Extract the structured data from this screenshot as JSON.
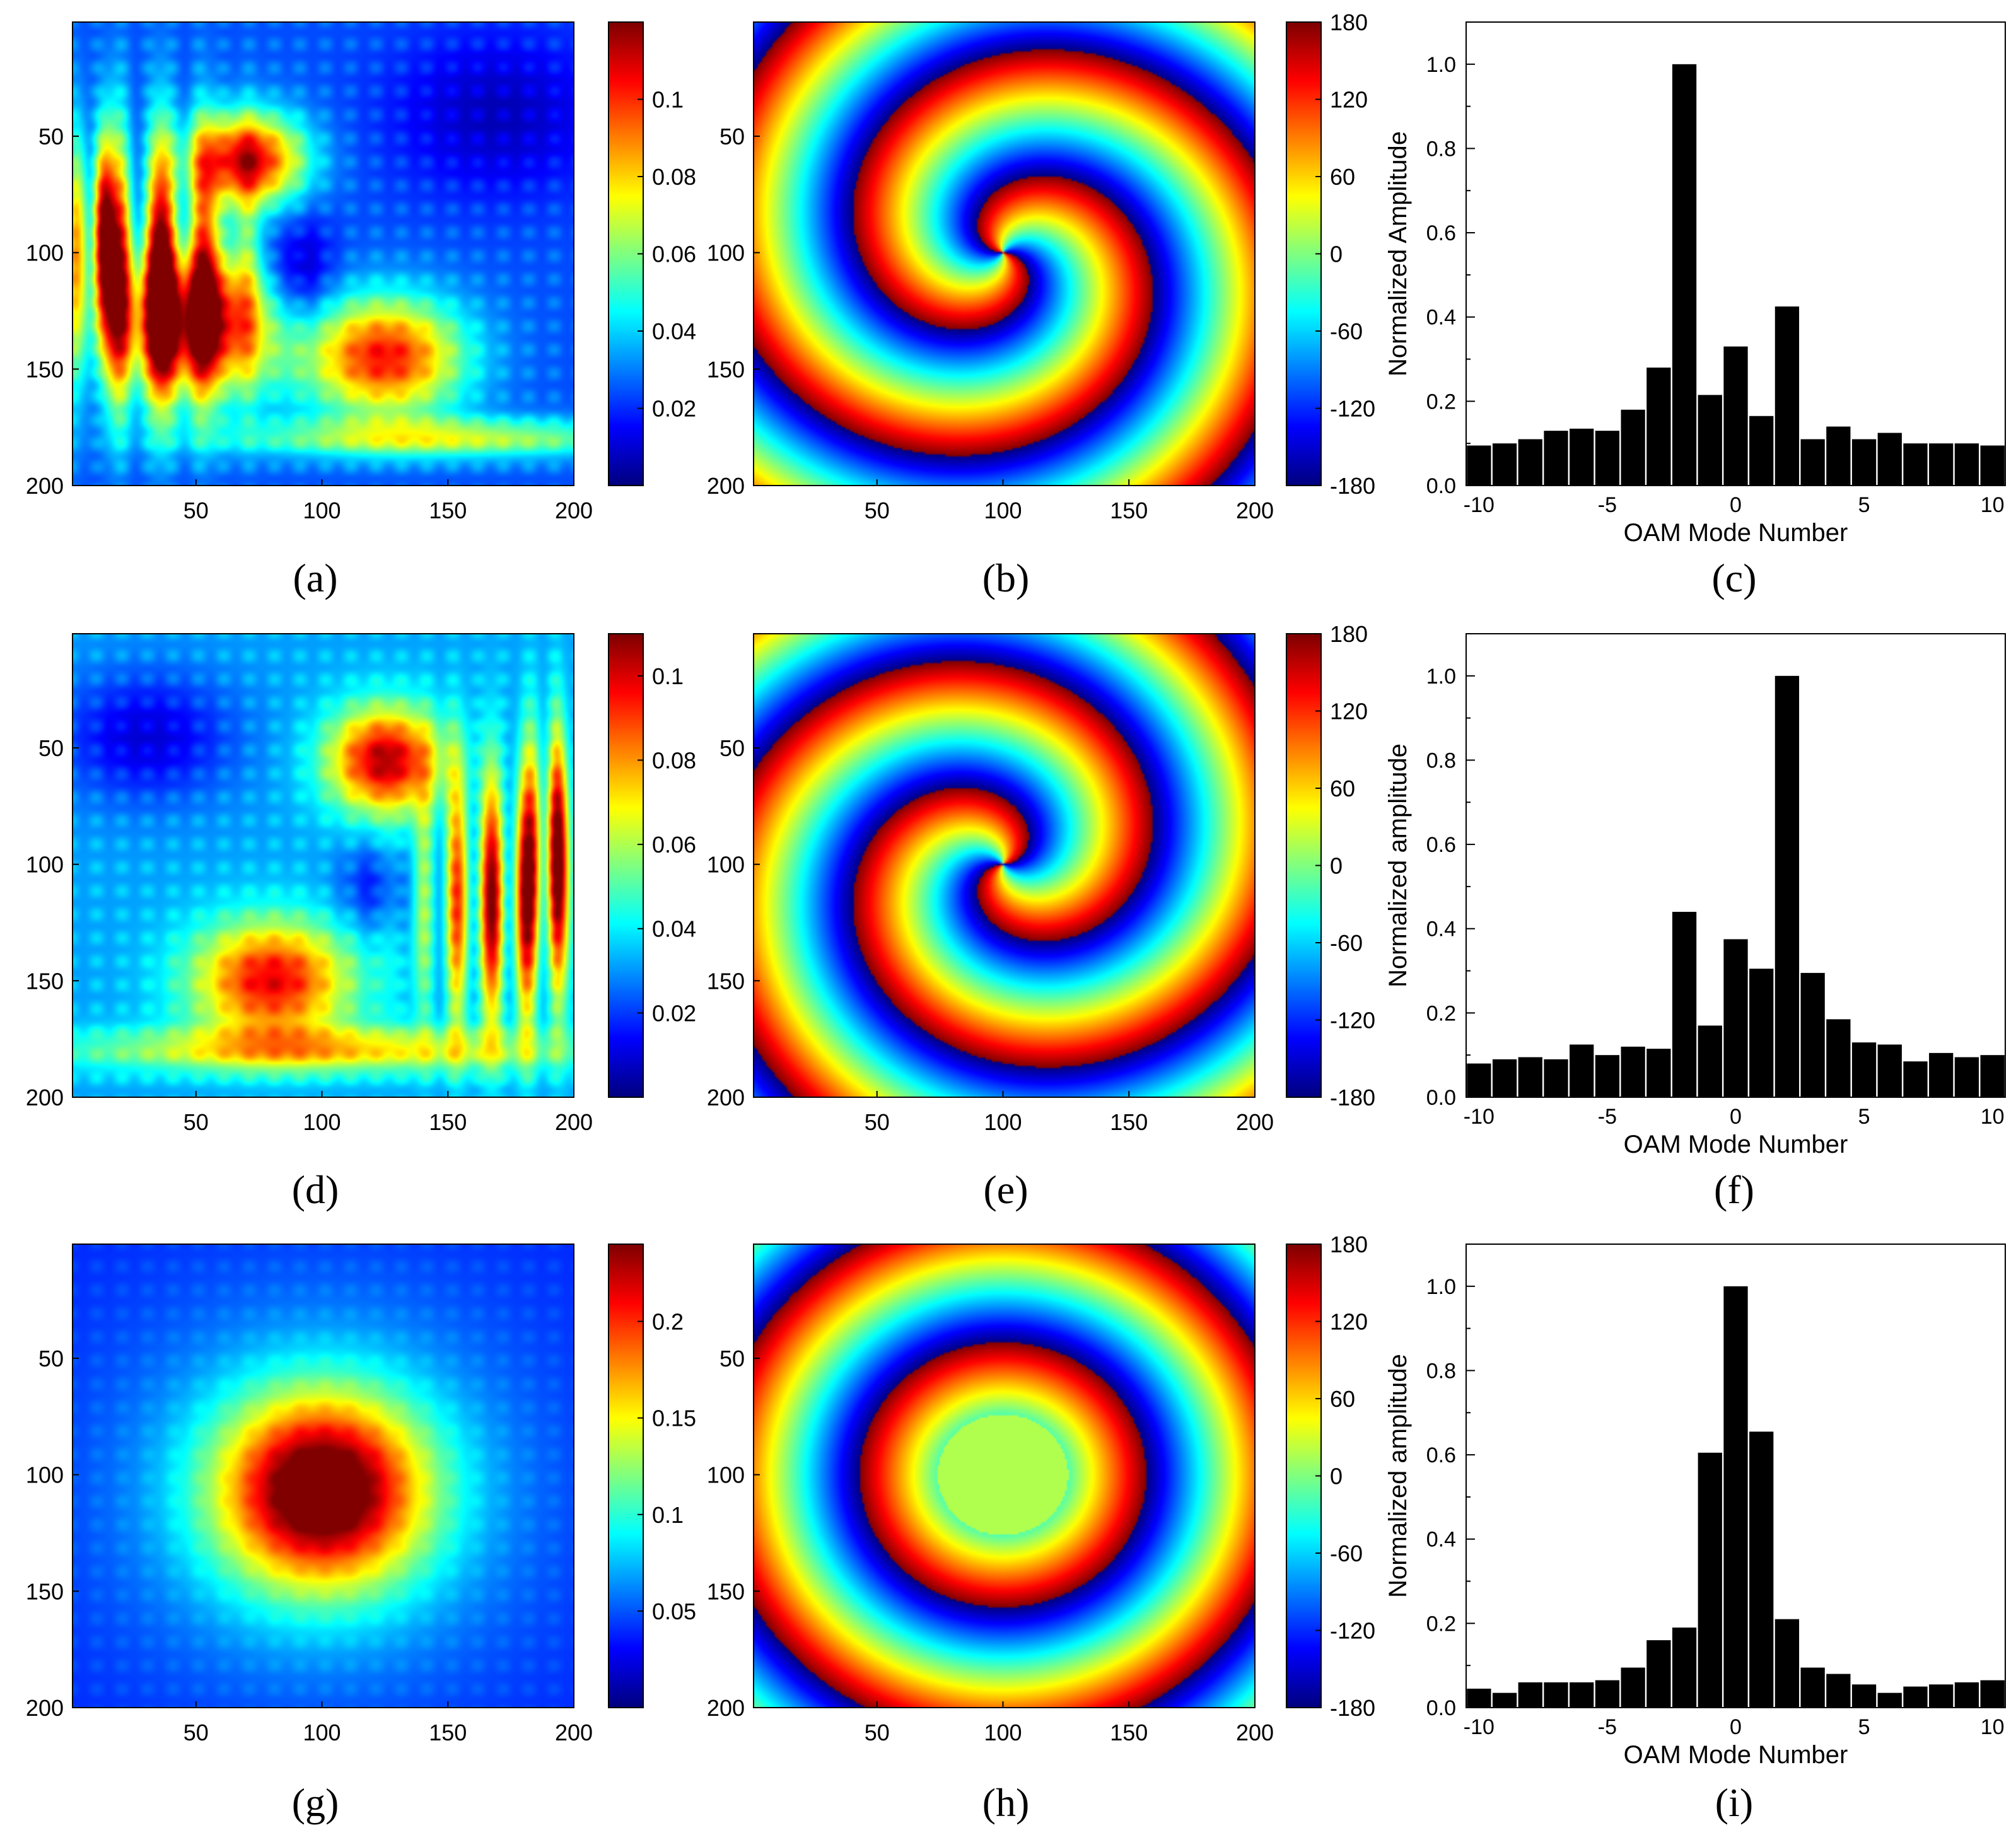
{
  "figure": {
    "colors": {
      "bar": "#000000",
      "axis": "#000000",
      "background": "#ffffff"
    },
    "colormap": "jet"
  },
  "chart_data": [
    {
      "id": "a",
      "type": "heatmap",
      "caption": "(a)",
      "quantity": "amplitude",
      "pattern": "amplitude-left",
      "x_ticks": [
        50,
        100,
        150,
        200
      ],
      "y_ticks": [
        50,
        100,
        150,
        200
      ],
      "x_range": [
        1,
        200
      ],
      "y_range": [
        1,
        200
      ],
      "colorbar": {
        "range": [
          0,
          0.12
        ],
        "ticks": [
          0.02,
          0.04,
          0.06,
          0.08,
          0.1
        ],
        "tick_labels": [
          "0.02",
          "0.04",
          "0.06",
          "0.08",
          "0.1"
        ]
      }
    },
    {
      "id": "b",
      "type": "heatmap",
      "caption": "(b)",
      "quantity": "phase",
      "pattern": "phase-spiral-ccw",
      "spiral_charge": -2,
      "x_ticks": [
        50,
        100,
        150,
        200
      ],
      "y_ticks": [
        50,
        100,
        150,
        200
      ],
      "x_range": [
        1,
        200
      ],
      "y_range": [
        1,
        200
      ],
      "colorbar": {
        "range": [
          -180,
          180
        ],
        "ticks": [
          180,
          120,
          60,
          0,
          -60,
          -120,
          -180
        ],
        "tick_labels": [
          "180",
          "120",
          "60",
          "0",
          "-60",
          "-120",
          "-180"
        ]
      }
    },
    {
      "id": "c",
      "type": "bar",
      "caption": "(c)",
      "xlabel": "OAM Mode Number",
      "ylabel": "Normalized Amplitude",
      "x": [
        -10,
        -9,
        -8,
        -7,
        -6,
        -5,
        -4,
        -3,
        -2,
        -1,
        0,
        1,
        2,
        3,
        4,
        5,
        6,
        7,
        8,
        9,
        10
      ],
      "values": [
        0.095,
        0.1,
        0.11,
        0.13,
        0.135,
        0.13,
        0.18,
        0.28,
        1.0,
        0.215,
        0.33,
        0.165,
        0.425,
        0.11,
        0.14,
        0.11,
        0.125,
        0.1,
        0.1,
        0.1,
        0.095
      ],
      "xlim": [
        -10.5,
        10.5
      ],
      "ylim": [
        0,
        1.1
      ],
      "x_ticks": [
        -10,
        -5,
        0,
        5,
        10
      ],
      "y_ticks": [
        0.0,
        0.2,
        0.4,
        0.6,
        0.8,
        1.0
      ]
    },
    {
      "id": "d",
      "type": "heatmap",
      "caption": "(d)",
      "quantity": "amplitude",
      "pattern": "amplitude-right",
      "x_ticks": [
        50,
        100,
        150,
        200
      ],
      "y_ticks": [
        50,
        100,
        150,
        200
      ],
      "x_range": [
        1,
        200
      ],
      "y_range": [
        1,
        200
      ],
      "colorbar": {
        "range": [
          0,
          0.11
        ],
        "ticks": [
          0.02,
          0.04,
          0.06,
          0.08,
          0.1
        ],
        "tick_labels": [
          "0.02",
          "0.04",
          "0.06",
          "0.08",
          "0.1"
        ]
      }
    },
    {
      "id": "e",
      "type": "heatmap",
      "caption": "(e)",
      "quantity": "phase",
      "pattern": "phase-spiral-cw",
      "spiral_charge": 2,
      "x_ticks": [
        50,
        100,
        150,
        200
      ],
      "y_ticks": [
        50,
        100,
        150,
        200
      ],
      "x_range": [
        1,
        200
      ],
      "y_range": [
        1,
        200
      ],
      "colorbar": {
        "range": [
          -180,
          180
        ],
        "ticks": [
          180,
          120,
          60,
          0,
          -60,
          -120,
          -180
        ],
        "tick_labels": [
          "180",
          "120",
          "60",
          "0",
          "-60",
          "-120",
          "-180"
        ]
      }
    },
    {
      "id": "f",
      "type": "bar",
      "caption": "(f)",
      "xlabel": "OAM Mode Number",
      "ylabel": "Normalized amplitude",
      "x": [
        -10,
        -9,
        -8,
        -7,
        -6,
        -5,
        -4,
        -3,
        -2,
        -1,
        0,
        1,
        2,
        3,
        4,
        5,
        6,
        7,
        8,
        9,
        10
      ],
      "values": [
        0.08,
        0.09,
        0.095,
        0.09,
        0.125,
        0.1,
        0.12,
        0.115,
        0.44,
        0.17,
        0.375,
        0.305,
        1.0,
        0.295,
        0.185,
        0.13,
        0.125,
        0.085,
        0.105,
        0.095,
        0.1
      ],
      "xlim": [
        -10.5,
        10.5
      ],
      "ylim": [
        0,
        1.1
      ],
      "x_ticks": [
        -10,
        -5,
        0,
        5,
        10
      ],
      "y_ticks": [
        0.0,
        0.2,
        0.4,
        0.6,
        0.8,
        1.0
      ]
    },
    {
      "id": "g",
      "type": "heatmap",
      "caption": "(g)",
      "quantity": "amplitude",
      "pattern": "amplitude-center",
      "x_ticks": [
        50,
        100,
        150,
        200
      ],
      "y_ticks": [
        50,
        100,
        150,
        200
      ],
      "x_range": [
        1,
        200
      ],
      "y_range": [
        1,
        200
      ],
      "colorbar": {
        "range": [
          0,
          0.24
        ],
        "ticks": [
          0.05,
          0.1,
          0.15,
          0.2
        ],
        "tick_labels": [
          "0.05",
          "0.1",
          "0.15",
          "0.2"
        ]
      }
    },
    {
      "id": "h",
      "type": "heatmap",
      "caption": "(h)",
      "quantity": "phase",
      "pattern": "phase-rings",
      "spiral_charge": 0,
      "x_ticks": [
        50,
        100,
        150,
        200
      ],
      "y_ticks": [
        50,
        100,
        150,
        200
      ],
      "x_range": [
        1,
        200
      ],
      "y_range": [
        1,
        200
      ],
      "colorbar": {
        "range": [
          -180,
          180
        ],
        "ticks": [
          180,
          120,
          60,
          0,
          -60,
          -120,
          -180
        ],
        "tick_labels": [
          "180",
          "120",
          "60",
          "0",
          "-60",
          "-120",
          "-180"
        ]
      }
    },
    {
      "id": "i",
      "type": "bar",
      "caption": "(i)",
      "xlabel": "OAM Mode Number",
      "ylabel": "Normalized amplitude",
      "x": [
        -10,
        -9,
        -8,
        -7,
        -6,
        -5,
        -4,
        -3,
        -2,
        -1,
        0,
        1,
        2,
        3,
        4,
        5,
        6,
        7,
        8,
        9,
        10
      ],
      "values": [
        0.045,
        0.035,
        0.06,
        0.06,
        0.06,
        0.065,
        0.095,
        0.16,
        0.19,
        0.605,
        1.0,
        0.655,
        0.21,
        0.095,
        0.08,
        0.055,
        0.035,
        0.05,
        0.055,
        0.06,
        0.065
      ],
      "xlim": [
        -10.5,
        10.5
      ],
      "ylim": [
        0,
        1.1
      ],
      "x_ticks": [
        -10,
        -5,
        0,
        5,
        10
      ],
      "y_ticks": [
        0.0,
        0.2,
        0.4,
        0.6,
        0.8,
        1.0
      ]
    }
  ]
}
